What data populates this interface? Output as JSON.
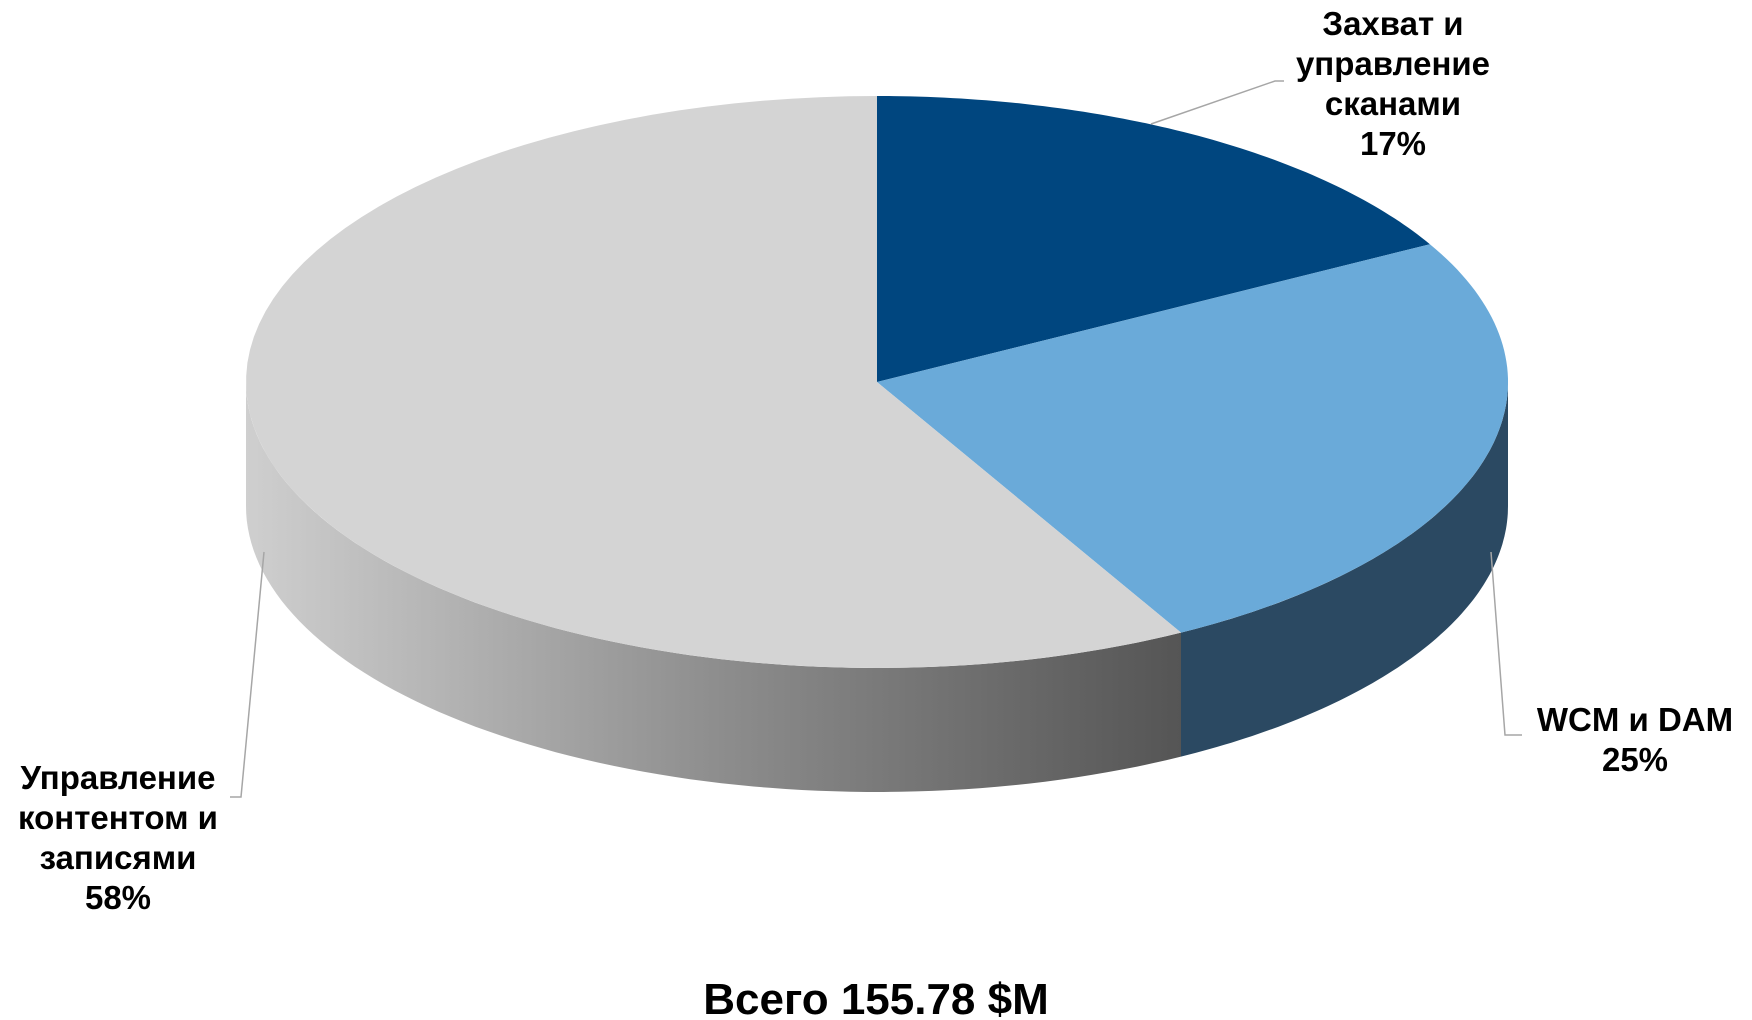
{
  "chart_data": {
    "type": "pie",
    "title": "Всего 155.78 $M",
    "categories": [
      "Захват и управление сканами",
      "WCM и DAM",
      "Управление контентом и записями"
    ],
    "values": [
      17,
      25,
      58
    ],
    "value_labels": [
      "17%",
      "25%",
      "58%"
    ],
    "colors": [
      "#00467f",
      "#6aaad9",
      "#d4d4d4"
    ],
    "side_colors": [
      "#00304f",
      "#2b4962",
      "url(#graySide)"
    ]
  }
}
